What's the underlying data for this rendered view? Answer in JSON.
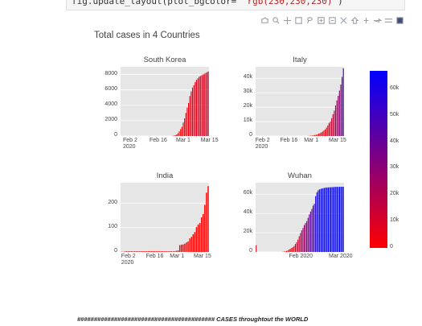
{
  "code": {
    "prefix": "fig.update_layout(plot_bgcolor= ",
    "string": "'rgb(230,230,230)'",
    "suffix": ")"
  },
  "modebar": {
    "icons": [
      "camera-icon",
      "zoom-icon",
      "pan-icon",
      "box-select-icon",
      "lasso-icon",
      "zoom-in-icon",
      "zoom-out-icon",
      "autoscale-icon",
      "reset-axes-icon",
      "spike-lines-icon",
      "hover-closest-icon",
      "hover-compare-icon",
      "plotly-logo-icon"
    ]
  },
  "figure": {
    "title": "Total cases in 4 Countries"
  },
  "colors": {
    "low": "#ff0000",
    "high": "#0000ff",
    "plot_bg": "#e6e6e6"
  },
  "colorbar": {
    "ticks": [
      "60k",
      "50k",
      "40k",
      "30k",
      "20k",
      "10k",
      "0"
    ],
    "range": [
      0,
      67000
    ]
  },
  "chart_data": [
    {
      "type": "bar",
      "title": "South Korea",
      "ylim": [
        0,
        9000
      ],
      "yticks": [
        "8000",
        "6000",
        "4000",
        "2000",
        "0"
      ],
      "xticks": [
        "Feb 2\n2020",
        "Feb 16",
        "Mar 1",
        "Mar 15"
      ],
      "values": [
        0,
        0,
        0,
        0,
        0,
        0,
        0,
        0,
        0,
        0,
        0,
        0,
        0,
        0,
        0,
        0,
        0,
        0,
        0,
        0,
        0,
        0,
        0,
        0,
        0,
        0,
        0,
        0,
        0,
        0,
        0,
        0,
        0,
        0,
        0,
        0,
        0,
        0,
        0,
        30,
        50,
        100,
        200,
        350,
        600,
        900,
        1200,
        1750,
        2300,
        3000,
        3700,
        4300,
        5200,
        5800,
        6300,
        6600,
        7000,
        7300,
        7500,
        7700,
        7800,
        7900,
        8000,
        8100,
        8200,
        8300,
        8400
      ]
    },
    {
      "type": "bar",
      "title": "Italy",
      "ylim": [
        0,
        48000
      ],
      "yticks": [
        "40k",
        "30k",
        "20k",
        "10k",
        "0"
      ],
      "xticks": [
        "Feb 2\n2020",
        "Feb 16",
        "Mar 1",
        "Mar 15"
      ],
      "values": [
        0,
        0,
        0,
        0,
        0,
        0,
        0,
        0,
        0,
        0,
        0,
        0,
        0,
        0,
        0,
        0,
        0,
        0,
        0,
        0,
        0,
        0,
        0,
        0,
        0,
        0,
        0,
        0,
        0,
        0,
        0,
        0,
        0,
        0,
        0,
        0,
        0,
        0,
        0,
        0,
        80,
        150,
        230,
        320,
        450,
        650,
        900,
        1130,
        1700,
        2000,
        2500,
        3100,
        3850,
        4600,
        5900,
        7400,
        9100,
        10100,
        12400,
        15100,
        17600,
        21200,
        24700,
        27900,
        31500,
        35700,
        41000,
        47000
      ]
    },
    {
      "type": "bar",
      "title": "India",
      "ylim": [
        0,
        285
      ],
      "yticks": [
        "200",
        "100",
        "0"
      ],
      "xticks": [
        "Feb 2\n2020",
        "Feb 16",
        "Mar 1",
        "Mar 15"
      ],
      "values": [
        1,
        1,
        2,
        3,
        3,
        3,
        3,
        3,
        3,
        3,
        3,
        3,
        3,
        3,
        3,
        3,
        3,
        3,
        3,
        3,
        3,
        3,
        3,
        3,
        3,
        3,
        3,
        3,
        3,
        3,
        3,
        3,
        3,
        5,
        6,
        28,
        30,
        31,
        34,
        39,
        43,
        56,
        62,
        73,
        82,
        102,
        113,
        119,
        142,
        156,
        194,
        244,
        271
      ]
    },
    {
      "type": "bar",
      "title": "Wuhan",
      "ylim": [
        0,
        72000
      ],
      "yticks": [
        "60k",
        "40k",
        "20k",
        "0"
      ],
      "xticks": [
        "Feb 2020",
        "Mar 2020"
      ],
      "values": [
        7000,
        0,
        0,
        0,
        0,
        0,
        0,
        0,
        0,
        0,
        0,
        0,
        0,
        0,
        0,
        0,
        0,
        0,
        0,
        0,
        0,
        200,
        400,
        600,
        1000,
        1500,
        2600,
        3200,
        4100,
        5000,
        6300,
        8300,
        10200,
        12900,
        16300,
        19600,
        22400,
        25000,
        28000,
        30000,
        32000,
        35500,
        39000,
        42000,
        44700,
        48200,
        50000,
        58000,
        62000,
        64000,
        65000,
        65500,
        66000,
        66300,
        66600,
        66900,
        67000,
        67100,
        67200,
        67300,
        67400,
        67500,
        67600,
        67700,
        67700,
        67700,
        67700,
        67800,
        67800,
        67800
      ]
    }
  ],
  "footer": "######################################### CASES throughtout the WORLD"
}
